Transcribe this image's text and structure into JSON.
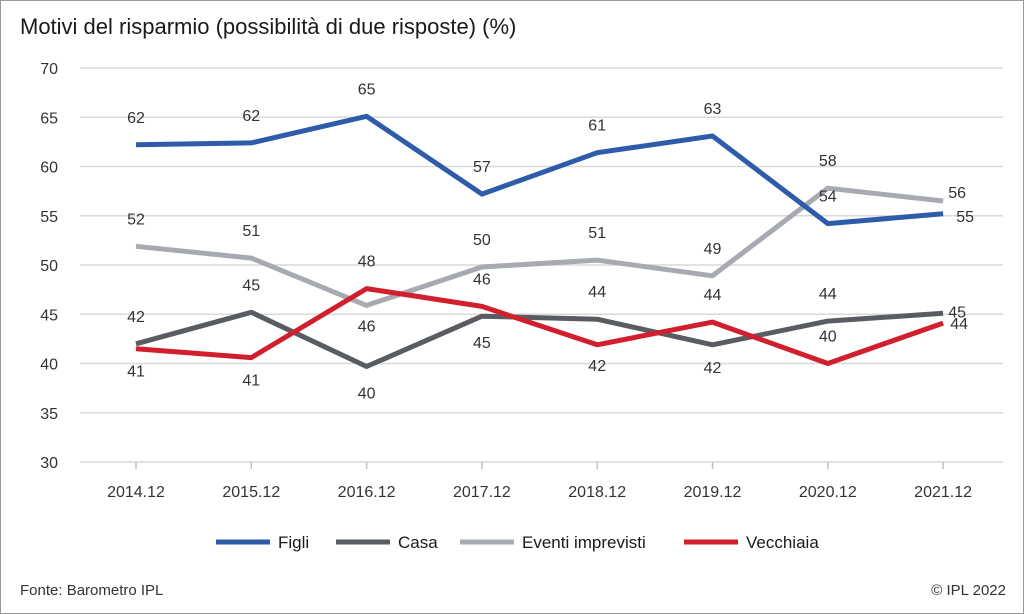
{
  "title": "Motivi del risparmio (possibilità di due risposte) (%)",
  "source": "Fonte: Barometro IPL",
  "copyright": "© IPL 2022",
  "colors": {
    "figli": "#2e5caa",
    "casa": "#595d62",
    "eventi": "#a7abb1",
    "vecchiaia": "#d21f2e",
    "grid": "#d9d9d9",
    "axis_text": "#333333"
  },
  "chart_data": {
    "type": "line",
    "categories": [
      "2014.12",
      "2015.12",
      "2016.12",
      "2017.12",
      "2018.12",
      "2019.12",
      "2020.12",
      "2021.12"
    ],
    "ylim": [
      30,
      70
    ],
    "yticks": [
      30,
      35,
      40,
      45,
      50,
      55,
      60,
      65,
      70
    ],
    "grid": true,
    "legend_position": "bottom",
    "series": [
      {
        "name": "Figli",
        "key": "figli",
        "values": [
          62.2,
          62.4,
          65.1,
          57.2,
          61.4,
          63.1,
          54.2,
          55.2
        ],
        "labels": [
          "62",
          "62",
          "65",
          "57",
          "61",
          "63",
          "54",
          "55"
        ]
      },
      {
        "name": "Casa",
        "key": "casa",
        "values": [
          42.0,
          45.2,
          39.7,
          44.8,
          44.5,
          41.9,
          44.3,
          45.1
        ],
        "labels": [
          "42",
          "45",
          "40",
          "45",
          "44",
          "42",
          "44",
          "45"
        ]
      },
      {
        "name": "Eventi imprevisti",
        "key": "eventi",
        "values": [
          51.9,
          50.7,
          45.9,
          49.8,
          50.5,
          48.9,
          57.8,
          56.5
        ],
        "labels": [
          "52",
          "51",
          "46",
          "50",
          "51",
          "49",
          "58",
          "56"
        ]
      },
      {
        "name": "Vecchiaia",
        "key": "vecchiaia",
        "values": [
          41.5,
          40.6,
          47.6,
          45.8,
          41.9,
          44.2,
          40.0,
          44.1
        ],
        "labels": [
          "41",
          "41",
          "48",
          "46",
          "42",
          "44",
          "40",
          "44"
        ]
      }
    ]
  }
}
